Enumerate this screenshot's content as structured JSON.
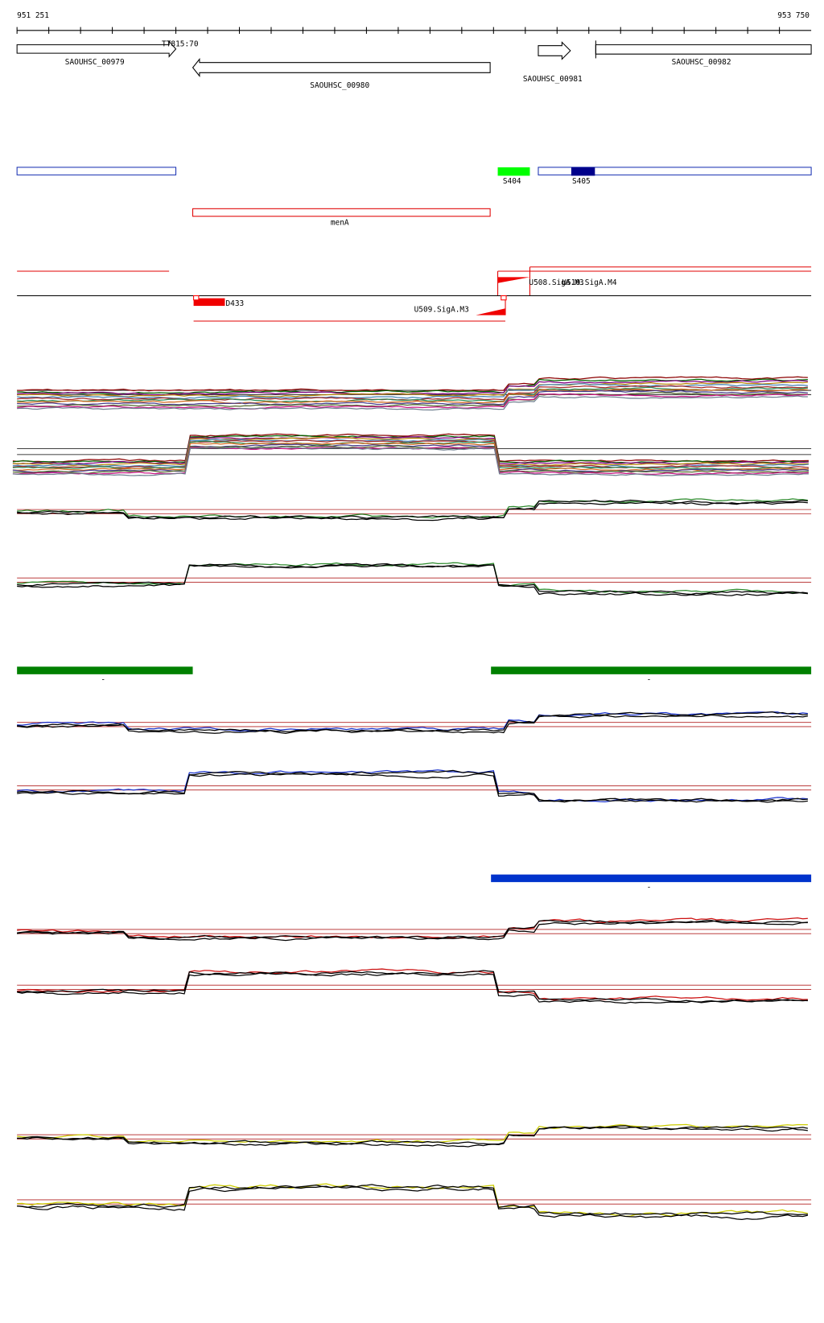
{
  "ruler": {
    "start": "951 251",
    "end": "953 750"
  },
  "terminator": "TT815:70",
  "genes": [
    "SAOUHSC_00979",
    "SAOUHSC_00980",
    "SAOUHSC_00981",
    "SAOUHSC_00982"
  ],
  "features": {
    "s404": "S404",
    "s405": "S405",
    "menA": "menA",
    "d433": "D433",
    "u509": "U509.SigA.M3",
    "u508": "U508.SigA.M3",
    "u510": "U510.SigA.M4"
  },
  "track_labels": [
    "-",
    "-",
    "-"
  ]
}
